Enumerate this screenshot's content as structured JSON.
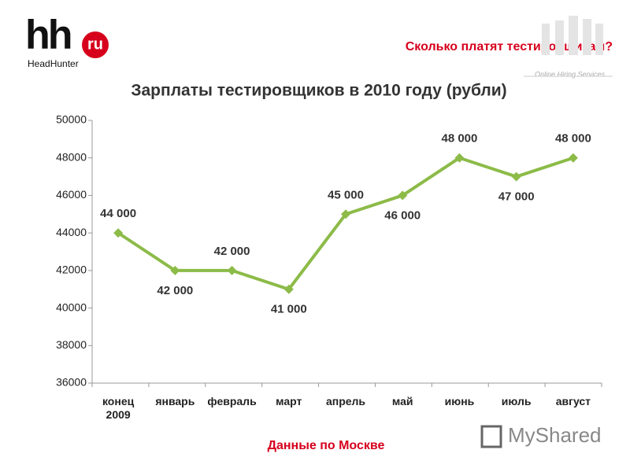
{
  "header": {
    "logo_text": "hh",
    "logo_badge": "ru",
    "brand": "HeadHunter",
    "question": "Сколько платят тестировщикам?",
    "tagline": "Online Hiring Services"
  },
  "chart_data": {
    "type": "line",
    "title": "Зарплаты тестировщиков в 2010 году (рубли)",
    "categories": [
      "конец 2009",
      "январь",
      "февраль",
      "март",
      "апрель",
      "май",
      "июнь",
      "июль",
      "август"
    ],
    "values": [
      44000,
      42000,
      42000,
      41000,
      45000,
      46000,
      48000,
      47000,
      48000
    ],
    "value_labels": [
      "44 000",
      "42 000",
      "42 000",
      "41 000",
      "45 000",
      "46 000",
      "48 000",
      "47 000",
      "48 000"
    ],
    "color": "#8cbb48",
    "ylim": [
      36000,
      50000
    ],
    "yticks": [
      36000,
      38000,
      40000,
      42000,
      44000,
      46000,
      48000,
      50000
    ]
  },
  "footer": {
    "note": "Данные по Москве",
    "watermark": "MyShared"
  }
}
